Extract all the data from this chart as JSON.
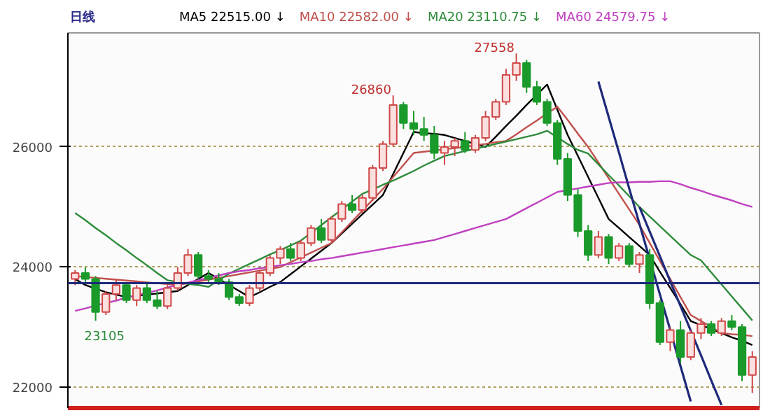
{
  "chart_data": {
    "type": "candlestick",
    "title": "日线",
    "categories": [
      null,
      null,
      null,
      null,
      null,
      null,
      null,
      null,
      null,
      null,
      null,
      null,
      null,
      null,
      null,
      null,
      null,
      null,
      null,
      null,
      null,
      null,
      null,
      null,
      null,
      null,
      null,
      null,
      null,
      null,
      null,
      null,
      null,
      null,
      null,
      null,
      null,
      null,
      null,
      null,
      null,
      null,
      null,
      null,
      null,
      null,
      null,
      null,
      null,
      null,
      null,
      null,
      null,
      null,
      null,
      null,
      null,
      null,
      null,
      null,
      null,
      null,
      null,
      null,
      null,
      null,
      null
    ],
    "ohlc": [
      [
        23800,
        23950,
        23700,
        23900
      ],
      [
        23900,
        24000,
        23750,
        23800
      ],
      [
        23800,
        23850,
        23105,
        23250
      ],
      [
        23250,
        23600,
        23200,
        23550
      ],
      [
        23550,
        23800,
        23450,
        23700
      ],
      [
        23700,
        23750,
        23400,
        23450
      ],
      [
        23450,
        23700,
        23350,
        23650
      ],
      [
        23650,
        23750,
        23400,
        23450
      ],
      [
        23450,
        23600,
        23300,
        23350
      ],
      [
        23350,
        23700,
        23300,
        23650
      ],
      [
        23650,
        24000,
        23600,
        23900
      ],
      [
        23900,
        24300,
        23850,
        24200
      ],
      [
        24200,
        24250,
        23800,
        23850
      ],
      [
        23850,
        23950,
        23750,
        23800
      ],
      [
        23800,
        23900,
        23700,
        23750
      ],
      [
        23750,
        23800,
        23450,
        23500
      ],
      [
        23500,
        23550,
        23350,
        23400
      ],
      [
        23400,
        23700,
        23350,
        23650
      ],
      [
        23650,
        23950,
        23600,
        23900
      ],
      [
        23900,
        24200,
        23850,
        24150
      ],
      [
        24150,
        24350,
        24050,
        24300
      ],
      [
        24300,
        24400,
        24100,
        24150
      ],
      [
        24150,
        24450,
        24100,
        24400
      ],
      [
        24400,
        24700,
        24350,
        24650
      ],
      [
        24650,
        24800,
        24400,
        24450
      ],
      [
        24450,
        24850,
        24400,
        24800
      ],
      [
        24800,
        25100,
        24750,
        25050
      ],
      [
        25050,
        25200,
        24900,
        24950
      ],
      [
        24950,
        25200,
        24900,
        25150
      ],
      [
        25150,
        25700,
        25100,
        25650
      ],
      [
        25650,
        26100,
        25600,
        26050
      ],
      [
        26050,
        26860,
        26000,
        26700
      ],
      [
        26700,
        26750,
        26300,
        26400
      ],
      [
        26400,
        26600,
        26200,
        26300
      ],
      [
        26300,
        26500,
        26100,
        26200
      ],
      [
        26200,
        26350,
        25800,
        25900
      ],
      [
        25900,
        26100,
        25700,
        26000
      ],
      [
        26000,
        26150,
        25850,
        26100
      ],
      [
        26100,
        26250,
        25900,
        25950
      ],
      [
        25950,
        26200,
        25900,
        26150
      ],
      [
        26150,
        26600,
        26100,
        26500
      ],
      [
        26500,
        26800,
        26450,
        26750
      ],
      [
        26750,
        27300,
        26700,
        27200
      ],
      [
        27200,
        27558,
        27100,
        27400
      ],
      [
        27400,
        27450,
        26900,
        27000
      ],
      [
        27000,
        27100,
        26700,
        26750
      ],
      [
        26750,
        26800,
        26350,
        26400
      ],
      [
        26400,
        26450,
        25700,
        25800
      ],
      [
        25800,
        25900,
        25100,
        25200
      ],
      [
        25200,
        25300,
        24500,
        24600
      ],
      [
        24600,
        24700,
        24100,
        24200
      ],
      [
        24200,
        24600,
        24150,
        24500
      ],
      [
        24500,
        24550,
        24050,
        24150
      ],
      [
        24150,
        24400,
        24100,
        24350
      ],
      [
        24350,
        24400,
        24000,
        24050
      ],
      [
        24050,
        24250,
        23900,
        24200
      ],
      [
        24200,
        24300,
        23300,
        23400
      ],
      [
        23400,
        23450,
        22700,
        22750
      ],
      [
        22750,
        23000,
        22600,
        22950
      ],
      [
        22950,
        23100,
        22400,
        22500
      ],
      [
        22500,
        22950,
        22450,
        22900
      ],
      [
        22900,
        23150,
        22800,
        23050
      ],
      [
        23050,
        23100,
        22850,
        22900
      ],
      [
        22900,
        23150,
        22850,
        23100
      ],
      [
        23100,
        23200,
        22950,
        23000
      ],
      [
        23000,
        23050,
        22100,
        22200
      ],
      [
        22200,
        22600,
        21900,
        22500
      ]
    ],
    "series": [
      {
        "type": "line",
        "name": "MA5 22515.00 ↓",
        "color": "#000000",
        "values": [
          23800,
          23700,
          23640,
          23580,
          23540,
          23500,
          23520,
          23540,
          23560,
          23580,
          23600,
          23700,
          23800,
          23900,
          23800,
          23700,
          23600,
          23500,
          23580,
          23670,
          23750,
          23880,
          24010,
          24140,
          24270,
          24400,
          24560,
          24720,
          24880,
          25040,
          25200,
          25550,
          25900,
          26250,
          26230,
          26220,
          26200,
          26150,
          26100,
          26050,
          26000,
          26170,
          26350,
          26520,
          26700,
          26870,
          27040,
          26620,
          26200,
          25850,
          25500,
          25150,
          24800,
          24650,
          24500,
          24350,
          24200,
          23920,
          23650,
          23380,
          23100,
          23030,
          22970,
          22900,
          22830,
          22770,
          22700
        ]
      },
      {
        "type": "line",
        "name": "MA10 22582.00 ↓",
        "color": "#c0504d",
        "values": [
          23850,
          23835,
          23820,
          23805,
          23790,
          23775,
          23760,
          23745,
          23730,
          23715,
          23700,
          23730,
          23760,
          23790,
          23820,
          23850,
          23880,
          23910,
          23940,
          23970,
          24000,
          24080,
          24160,
          24240,
          24320,
          24400,
          24580,
          24760,
          24940,
          25120,
          25300,
          25500,
          25700,
          25900,
          25920,
          25940,
          25960,
          25980,
          26000,
          26030,
          26050,
          26080,
          26100,
          26210,
          26330,
          26440,
          26560,
          26670,
          26450,
          26220,
          26000,
          25740,
          25480,
          25220,
          24960,
          24700,
          24400,
          24100,
          23800,
          23500,
          23200,
          23100,
          23000,
          22900,
          22880,
          22870,
          22850
        ]
      },
      {
        "type": "line",
        "name": "MA20 23110.75 ↓",
        "color": "#2e8b3a",
        "values": [
          24900,
          24780,
          24650,
          24530,
          24400,
          24280,
          24150,
          24030,
          23900,
          23780,
          23750,
          23720,
          23700,
          23670,
          23780,
          23890,
          23970,
          24050,
          24130,
          24210,
          24280,
          24360,
          24440,
          24570,
          24700,
          24830,
          24960,
          25090,
          25220,
          25290,
          25370,
          25440,
          25520,
          25600,
          25690,
          25770,
          25850,
          25890,
          25930,
          25970,
          26010,
          26050,
          26090,
          26130,
          26170,
          26210,
          26270,
          26160,
          26050,
          25950,
          25890,
          25710,
          25530,
          25360,
          25180,
          25000,
          24840,
          24680,
          24520,
          24360,
          24200,
          24110,
          23910,
          23710,
          23510,
          23310,
          23110
        ]
      },
      {
        "type": "line",
        "name": "MA60 24579.75 ↓",
        "color": "#c040c0",
        "values": [
          23270,
          23310,
          23360,
          23400,
          23440,
          23490,
          23530,
          23570,
          23610,
          23660,
          23700,
          23740,
          23780,
          23820,
          23860,
          23900,
          23930,
          23950,
          23980,
          24000,
          24030,
          24050,
          24080,
          24100,
          24130,
          24150,
          24180,
          24210,
          24240,
          24270,
          24300,
          24330,
          24360,
          24390,
          24420,
          24450,
          24500,
          24550,
          24600,
          24650,
          24700,
          24750,
          24800,
          24890,
          24980,
          25070,
          25160,
          25250,
          25280,
          25310,
          25340,
          25370,
          25400,
          25410,
          25410,
          25420,
          25420,
          25430,
          25430,
          25380,
          25320,
          25270,
          25210,
          25160,
          25110,
          25050,
          25000
        ]
      },
      {
        "type": "line",
        "color": "#1f2a7a",
        "values": [
          null,
          null,
          null,
          null,
          null,
          null,
          null,
          null,
          null,
          null,
          null,
          null,
          null,
          null,
          null,
          null,
          null,
          null,
          null,
          null,
          null,
          null,
          null,
          null,
          null,
          null,
          null,
          null,
          null,
          null,
          null,
          null,
          null,
          null,
          null,
          null,
          null,
          null,
          null,
          null,
          null,
          null,
          null,
          null,
          null,
          null,
          null,
          null,
          null,
          null,
          null,
          27090,
          26500,
          25910,
          25310,
          24720,
          24130,
          23540,
          22950,
          22350,
          21760,
          null,
          null,
          null,
          null,
          null,
          null
        ]
      },
      {
        "type": "line",
        "color": "#1f2a7a",
        "values": [
          null,
          null,
          null,
          null,
          null,
          null,
          null,
          null,
          null,
          null,
          null,
          null,
          null,
          null,
          null,
          null,
          null,
          null,
          null,
          null,
          null,
          null,
          null,
          null,
          null,
          null,
          null,
          null,
          null,
          null,
          null,
          null,
          null,
          null,
          null,
          null,
          null,
          null,
          null,
          null,
          null,
          null,
          null,
          null,
          null,
          null,
          null,
          null,
          null,
          null,
          null,
          null,
          null,
          null,
          null,
          25000,
          24590,
          24180,
          23760,
          23350,
          22940,
          22530,
          22110,
          21700,
          null,
          null,
          null
        ]
      }
    ],
    "ref_lines": [
      {
        "axis": "y",
        "value": 23730,
        "color": "#1f2a7a"
      }
    ],
    "annotations": [
      "26860",
      "27558",
      {
        "text": "23105",
        "y": 23105
      }
    ],
    "ylim": [
      21650,
      27900
    ],
    "yticks": [
      22000,
      24000,
      26000
    ],
    "tick_labels": "y",
    "grid": "y",
    "legend": "top",
    "line_style": "solid",
    "marker": "none"
  }
}
